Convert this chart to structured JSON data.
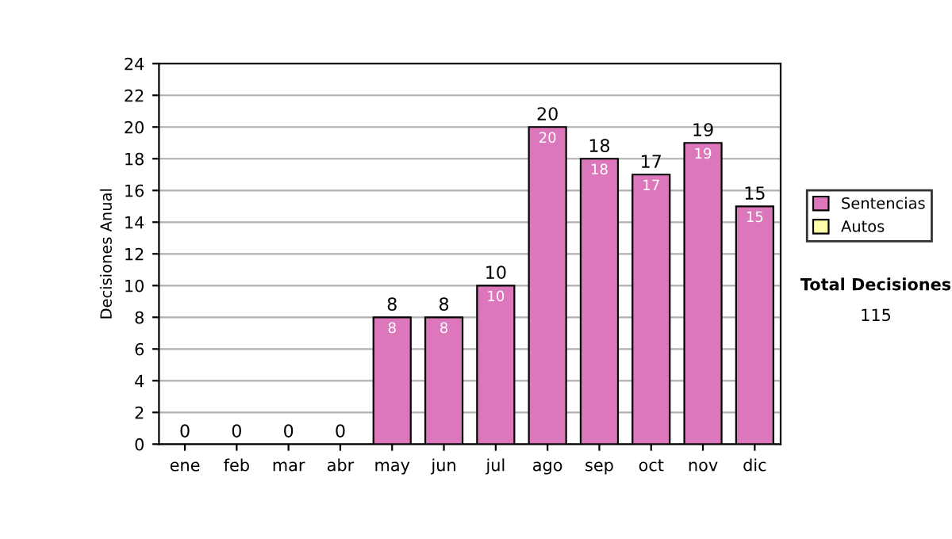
{
  "chart_data": {
    "type": "bar",
    "ylabel": "Decisiones Anual",
    "categories": [
      "ene",
      "feb",
      "mar",
      "abr",
      "may",
      "jun",
      "jul",
      "ago",
      "sep",
      "oct",
      "nov",
      "dic"
    ],
    "stacked": true,
    "series": [
      {
        "name": "Sentencias",
        "color": "#dd77bb",
        "values": [
          0,
          0,
          0,
          0,
          8,
          8,
          10,
          20,
          18,
          17,
          19,
          15
        ],
        "value_labels": [
          null,
          null,
          null,
          null,
          "8",
          "8",
          "10",
          "20",
          "18",
          "17",
          "19",
          "15"
        ]
      },
      {
        "name": "Autos",
        "color": "#ffffaa",
        "values": [
          0,
          0,
          0,
          0,
          0,
          0,
          0,
          0,
          0,
          0,
          0,
          0
        ]
      }
    ],
    "totals": [
      "0",
      "0",
      "0",
      "0",
      "8",
      "8",
      "10",
      "20",
      "18",
      "17",
      "19",
      "15"
    ],
    "ylim": [
      0,
      24
    ],
    "yticks": [
      0,
      2,
      4,
      6,
      8,
      10,
      12,
      14,
      16,
      18,
      20,
      22,
      24
    ],
    "grid": "y",
    "legend": "right",
    "annotations": [
      "Total Decisiones",
      "115"
    ]
  }
}
